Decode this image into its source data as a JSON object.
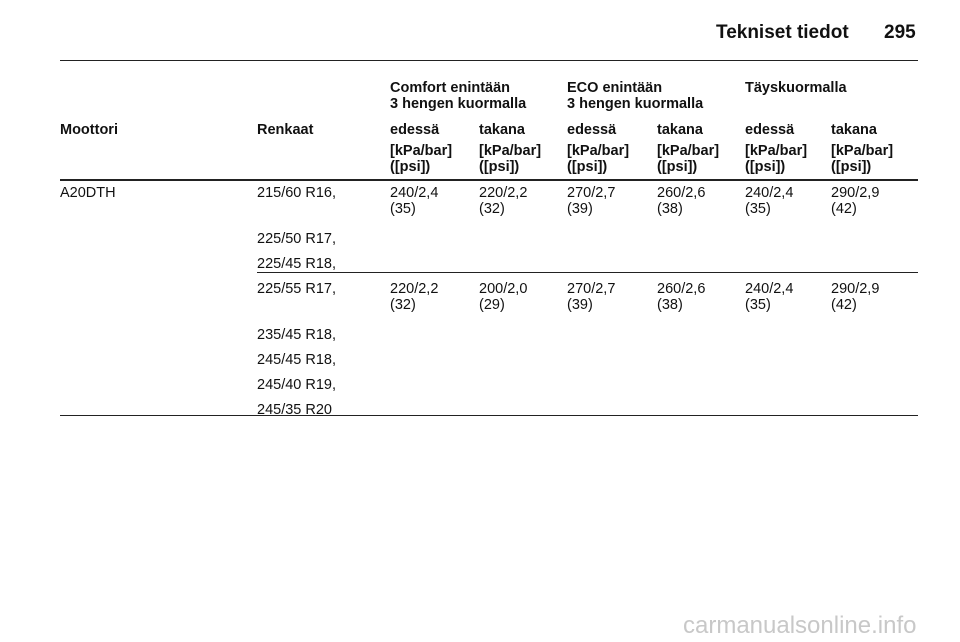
{
  "header": {
    "title": "Tekniset tiedot",
    "page": "295"
  },
  "table": {
    "group_headers": [
      {
        "lines": [
          "Comfort enintään",
          "3 hengen kuormalla"
        ]
      },
      {
        "lines": [
          "ECO enintään",
          "3 hengen kuormalla"
        ]
      },
      {
        "lines": [
          "Täyskuormalla"
        ]
      }
    ],
    "columns": [
      "Moottori",
      "Renkaat",
      "edessä",
      "takana",
      "edessä",
      "takana",
      "edessä",
      "takana"
    ],
    "units": [
      [
        "[kPa/bar]",
        "([psi])"
      ],
      [
        "[kPa/bar]",
        "([psi])"
      ],
      [
        "[kPa/bar]",
        "([psi])"
      ],
      [
        "[kPa/bar]",
        "([psi])"
      ],
      [
        "[kPa/bar]",
        "([psi])"
      ],
      [
        "[kPa/bar]",
        "([psi])"
      ]
    ],
    "rows": [
      {
        "engine": "A20DTH",
        "tires": [
          "215/60 R16,",
          "225/50 R17,",
          "225/45 R18,"
        ],
        "values": [
          [
            "240/2,4",
            "(35)"
          ],
          [
            "220/2,2",
            "(32)"
          ],
          [
            "270/2,7",
            "(39)"
          ],
          [
            "260/2,6",
            "(38)"
          ],
          [
            "240/2,4",
            "(35)"
          ],
          [
            "290/2,9",
            "(42)"
          ]
        ]
      },
      {
        "engine": null,
        "tires": [
          "225/55 R17,",
          "235/45 R18,",
          "245/45 R18,",
          "245/40 R19,",
          "245/35 R20"
        ],
        "values": [
          [
            "220/2,2",
            "(32)"
          ],
          [
            "200/2,0",
            "(29)"
          ],
          [
            "270/2,7",
            "(39)"
          ],
          [
            "260/2,6",
            "(38)"
          ],
          [
            "240/2,4",
            "(35)"
          ],
          [
            "290/2,9",
            "(42)"
          ]
        ]
      }
    ]
  },
  "watermark": "carmanualsonline.info"
}
